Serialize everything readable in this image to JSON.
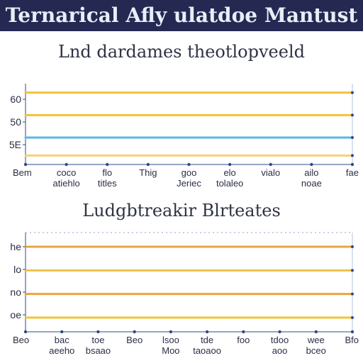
{
  "header": {
    "title": "Ternarical Afly ulatdoe Mantust"
  },
  "chart_data": [
    {
      "type": "line",
      "title": "Lnd dardames theotlopveeld",
      "xlabel": "",
      "ylabel": "",
      "categories": [
        [
          "Bem"
        ],
        [
          "coco",
          "atiehlo"
        ],
        [
          "flo",
          "titles"
        ],
        [
          "Thig"
        ],
        [
          "goo",
          "Jeriec"
        ],
        [
          "elo",
          "tolaleo"
        ],
        [
          "vialo"
        ],
        [
          "ailo",
          "noae"
        ],
        [
          "fae"
        ]
      ],
      "y_tick_labels": [
        "60",
        "50",
        "5E"
      ],
      "series": [
        {
          "values": [
            60,
            60,
            60,
            60,
            60,
            60,
            60,
            60,
            60
          ],
          "color": "#f2c33a"
        },
        {
          "values": [
            50,
            50,
            50,
            50,
            50,
            50,
            50,
            50,
            50
          ],
          "color": "#f2c33a"
        },
        {
          "values": [
            40,
            40,
            40,
            40,
            40,
            40,
            40,
            40,
            40
          ],
          "color": "#59b7e3"
        },
        {
          "values": [
            32,
            32,
            32,
            32,
            32,
            32,
            32,
            32,
            32
          ],
          "color": "#f5d07c"
        }
      ],
      "ylim": [
        28,
        64
      ],
      "grid": false,
      "axis_color": "#2f4a8a"
    },
    {
      "type": "line",
      "title": "Ludgbtreakir Blrteates",
      "xlabel": "",
      "ylabel": "",
      "categories": [
        [
          "Beo"
        ],
        [
          "bac",
          "aeeho"
        ],
        [
          "toe",
          "bsaao"
        ],
        [
          "Beo"
        ],
        [
          "lsoo",
          "Moo"
        ],
        [
          "tde",
          "taoaoo"
        ],
        [
          "foo"
        ],
        [
          "tdoo",
          "aoo"
        ],
        [
          "wee",
          "bceo"
        ],
        [
          "Bfo"
        ]
      ],
      "y_tick_labels": [
        "he",
        "lo",
        "no",
        "oe"
      ],
      "series": [
        {
          "values": [
            80,
            80,
            80,
            80,
            80,
            80,
            80,
            80,
            80,
            80
          ],
          "color": "#e8a640"
        },
        {
          "values": [
            70,
            70,
            70,
            70,
            70,
            70,
            70,
            70,
            70,
            70
          ],
          "color": "#efc04a"
        },
        {
          "values": [
            60,
            60,
            60,
            60,
            60,
            60,
            60,
            60,
            60,
            60
          ],
          "color": "#e8a640"
        },
        {
          "values": [
            50,
            50,
            50,
            50,
            50,
            50,
            50,
            50,
            50,
            50
          ],
          "color": "#f2c33a"
        }
      ],
      "ylim": [
        44,
        86
      ],
      "grid": false,
      "axis_color": "#2f4a8a"
    }
  ]
}
